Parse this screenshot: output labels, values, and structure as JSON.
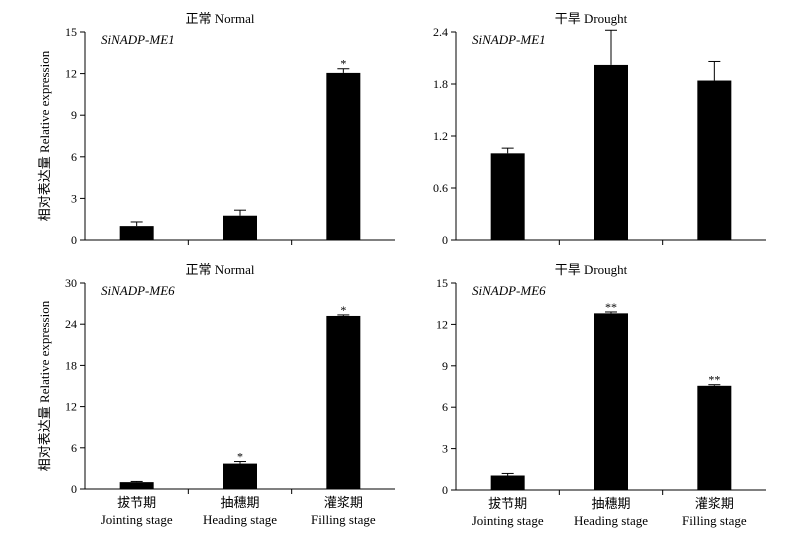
{
  "chart_data": [
    {
      "type": "bar",
      "title": "正常 Normal",
      "annotation": "SiNADP-ME1",
      "ylabel": "相对表达量 Relative expression",
      "ylim": [
        0,
        15
      ],
      "yticks": [
        0,
        3,
        6,
        9,
        12,
        15
      ],
      "ytick_labels": [
        "0",
        "3",
        "6",
        "9",
        "12",
        "15"
      ],
      "categories": [
        "拔节期 Jointing stage",
        "抽穗期 Heading stage",
        "灌浆期 Filling stage"
      ],
      "show_categories": false,
      "values": [
        1.0,
        1.75,
        12.05
      ],
      "errors": [
        0.3,
        0.4,
        0.3
      ],
      "significance": [
        "",
        "",
        "*"
      ]
    },
    {
      "type": "bar",
      "title": "干旱 Drought",
      "annotation": "SiNADP-ME1",
      "ylabel": "",
      "ylim": [
        0,
        2.4
      ],
      "yticks": [
        0,
        0.6,
        1.2,
        1.8,
        2.4
      ],
      "ytick_labels": [
        "0",
        "0.6",
        "1.2",
        "1.8",
        "2.4"
      ],
      "categories": [
        "拔节期 Jointing stage",
        "抽穗期 Heading stage",
        "灌浆期 Filling stage"
      ],
      "show_categories": false,
      "values": [
        1.0,
        2.02,
        1.84
      ],
      "errors": [
        0.06,
        0.4,
        0.22
      ],
      "significance": [
        "",
        "",
        ""
      ]
    },
    {
      "type": "bar",
      "title": "正常 Normal",
      "annotation": "SiNADP-ME6",
      "ylabel": "相对表达量 Relative expression",
      "ylim": [
        0,
        30
      ],
      "yticks": [
        0,
        6,
        12,
        18,
        24,
        30
      ],
      "ytick_labels": [
        "0",
        "6",
        "12",
        "18",
        "24",
        "30"
      ],
      "categories": [
        "拔节期 Jointing stage",
        "抽穗期 Heading stage",
        "灌浆期 Filling stage"
      ],
      "show_categories": true,
      "values": [
        1.0,
        3.7,
        25.2
      ],
      "errors": [
        0.1,
        0.3,
        0.15
      ],
      "significance": [
        "",
        "*",
        "*"
      ]
    },
    {
      "type": "bar",
      "title": "干旱 Drought",
      "annotation": "SiNADP-ME6",
      "ylabel": "",
      "ylim": [
        0,
        15
      ],
      "yticks": [
        0,
        3,
        6,
        9,
        12,
        15
      ],
      "ytick_labels": [
        "0",
        "3",
        "6",
        "9",
        "12",
        "15"
      ],
      "categories": [
        "拔节期 Jointing stage",
        "抽穗期 Heading stage",
        "灌浆期 Filling stage"
      ],
      "show_categories": true,
      "values": [
        1.05,
        12.8,
        7.55
      ],
      "errors": [
        0.15,
        0.1,
        0.08
      ],
      "significance": [
        "",
        "**",
        "**"
      ]
    }
  ]
}
